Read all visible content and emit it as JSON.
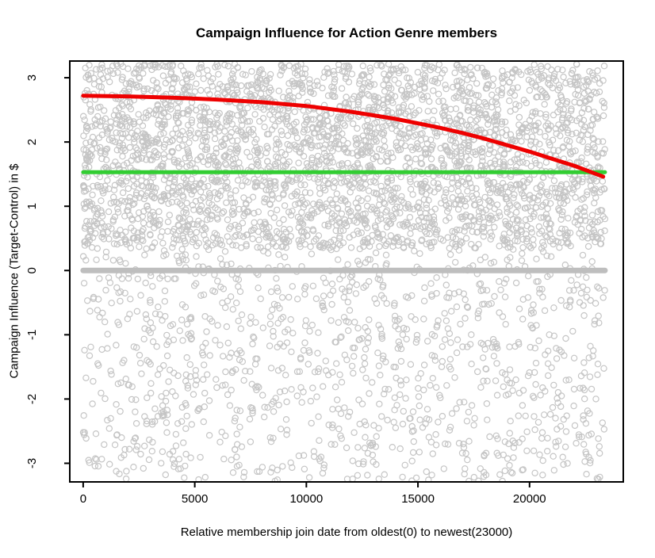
{
  "chart_data": {
    "type": "scatter",
    "title": "Campaign Influence for Action Genre members",
    "xlabel": "Relative membership join date from oldest(0) to newest(23000)",
    "ylabel": "Campaign Influence (Target-Control) in $",
    "xlim": [
      -600,
      24200
    ],
    "ylim": [
      -3.29,
      3.26
    ],
    "grid": false,
    "x_ticks": {
      "values": [
        0,
        5000,
        10000,
        15000,
        20000
      ],
      "labels": [
        "0",
        "5000",
        "10000",
        "15000",
        "20000"
      ]
    },
    "y_ticks": {
      "values": [
        -3,
        -2,
        -1,
        0,
        1,
        2,
        3
      ],
      "labels": [
        "-3",
        "-2",
        "-1",
        "0",
        "1",
        "2",
        "3"
      ]
    },
    "series": {
      "scatter_cloud": {
        "name": "individual member influence points",
        "marker": "open-circle",
        "color": "#C5C5C5",
        "point_radius": 3.6,
        "x_range": [
          0,
          23380
        ],
        "bands": [
          {
            "y_range": [
              0.35,
              3.22
            ],
            "count": 3200
          },
          {
            "y_range": [
              -3.28,
              0.35
            ],
            "count": 1150
          }
        ],
        "seed": 7
      },
      "zero_line": {
        "name": "zero reference line",
        "y": 0,
        "color": "#BEBEBE",
        "stroke_width": 7,
        "x_range": [
          0,
          23380
        ]
      },
      "average_line": {
        "name": "overall average influence line",
        "y": 1.53,
        "color": "#32CD32",
        "stroke_width": 5,
        "x_range": [
          0,
          23380
        ]
      },
      "trend_curve": {
        "name": "smoothed influence trend",
        "color": "#EE0000",
        "stroke_width": 5,
        "x": [
          0,
          2000,
          4000,
          6000,
          8000,
          10000,
          12000,
          14000,
          16000,
          17000,
          18000,
          19000,
          20000,
          21000,
          22000,
          23000,
          23300
        ],
        "y": [
          2.72,
          2.71,
          2.69,
          2.66,
          2.62,
          2.56,
          2.47,
          2.36,
          2.22,
          2.14,
          2.05,
          1.95,
          1.85,
          1.74,
          1.63,
          1.5,
          1.46
        ]
      }
    },
    "colors": {
      "axis": "#000000",
      "tick_text": "#000000",
      "background": "#FFFFFF"
    }
  }
}
